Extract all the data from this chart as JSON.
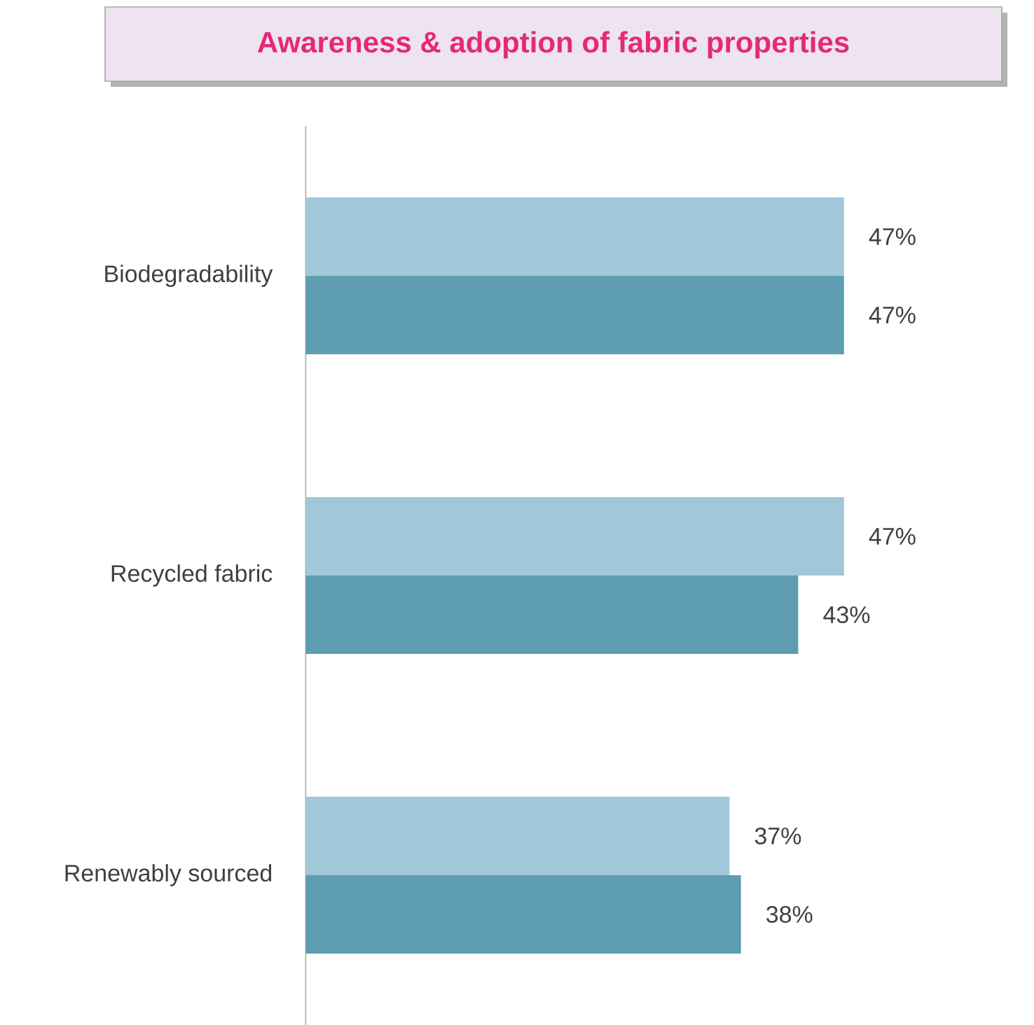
{
  "chart_data": {
    "type": "bar",
    "orientation": "horizontal",
    "title": "Awareness & adoption of fabric properties",
    "categories": [
      "Biodegradability",
      "Recycled fabric",
      "Renewably sourced"
    ],
    "series": [
      {
        "color": "#a0c8d8",
        "values": [
          47,
          47,
          37
        ],
        "value_labels": [
          "47%",
          "47%",
          "37%"
        ]
      },
      {
        "color": "#5e9db2",
        "values": [
          47,
          43,
          38
        ],
        "value_labels": [
          "47%",
          "43%",
          "38%"
        ]
      }
    ]
  }
}
